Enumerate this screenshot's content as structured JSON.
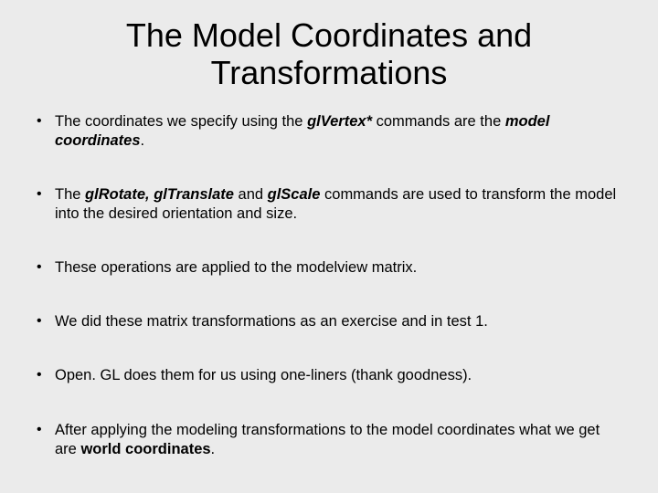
{
  "background_color": "#ebebeb",
  "text_color": "#000000",
  "font_family": "Arial",
  "title": {
    "line1": "The Model Coordinates and",
    "line2": "Transformations",
    "fontsize": 36,
    "fontweight": "normal",
    "align": "center"
  },
  "bullets": [
    {
      "segments": [
        {
          "t": "The coordinates we specify using the "
        },
        {
          "t": "glVertex* ",
          "style": "bi"
        },
        {
          "t": "commands are the "
        },
        {
          "t": "model coordinates",
          "style": "bi"
        },
        {
          "t": "."
        }
      ]
    },
    {
      "segments": [
        {
          "t": "The "
        },
        {
          "t": "glRotate, glTranslate ",
          "style": "bi"
        },
        {
          "t": "and "
        },
        {
          "t": "glScale ",
          "style": "bi"
        },
        {
          "t": "commands are used to transform the model into the desired orientation and size."
        }
      ]
    },
    {
      "segments": [
        {
          "t": "These operations are applied to the modelview matrix."
        }
      ]
    },
    {
      "segments": [
        {
          "t": "We did these matrix transformations as an exercise and in test 1."
        }
      ]
    },
    {
      "segments": [
        {
          "t": "Open. GL does them for us using one-liners (thank goodness)."
        }
      ]
    },
    {
      "segments": [
        {
          "t": "After applying the modeling transformations to the model coordinates what we get are "
        },
        {
          "t": "world coordinates",
          "style": "b"
        },
        {
          "t": "."
        }
      ]
    }
  ],
  "bullet_fontsize": 16.5,
  "bullet_spacing": 38
}
